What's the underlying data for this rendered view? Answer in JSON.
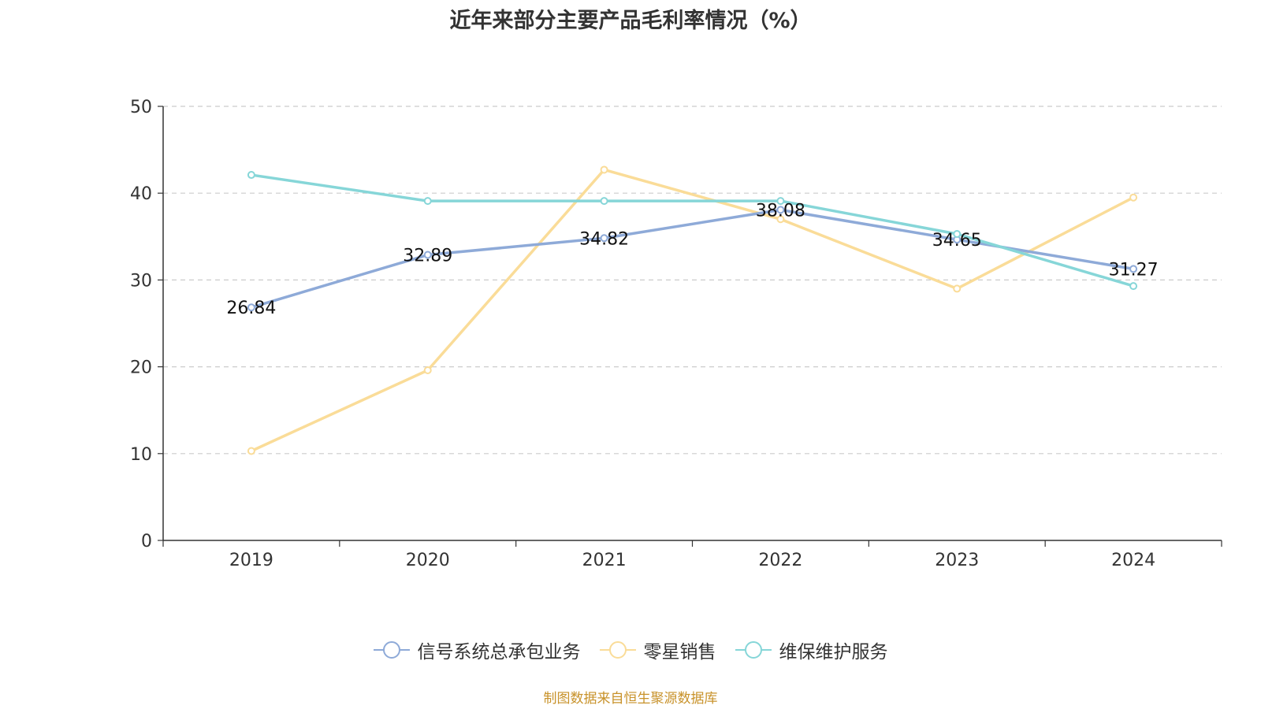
{
  "chart_data": {
    "type": "line",
    "title": "近年来部分主要产品毛利率情况（%）",
    "categories": [
      "2019",
      "2020",
      "2021",
      "2022",
      "2023",
      "2024"
    ],
    "ylim": [
      0,
      50
    ],
    "yticks": [
      "0",
      "10",
      "20",
      "30",
      "40",
      "50"
    ],
    "grid": true,
    "legend_position": "bottom",
    "series": [
      {
        "name": "信号系统总承包业务",
        "color": "#8eaad8",
        "values": [
          26.84,
          32.89,
          34.82,
          38.08,
          34.65,
          31.27
        ],
        "labels": [
          "26.84",
          "32.89",
          "34.82",
          "38.08",
          "34.65",
          "31.27"
        ]
      },
      {
        "name": "零星销售",
        "color": "#fadc98",
        "values": [
          10.3,
          19.6,
          42.7,
          37.0,
          29.0,
          39.5
        ]
      },
      {
        "name": "维保维护服务",
        "color": "#86d6d8",
        "values": [
          42.1,
          39.1,
          39.1,
          39.1,
          35.3,
          29.3
        ]
      }
    ]
  },
  "source": "制图数据来自恒生聚源数据库"
}
